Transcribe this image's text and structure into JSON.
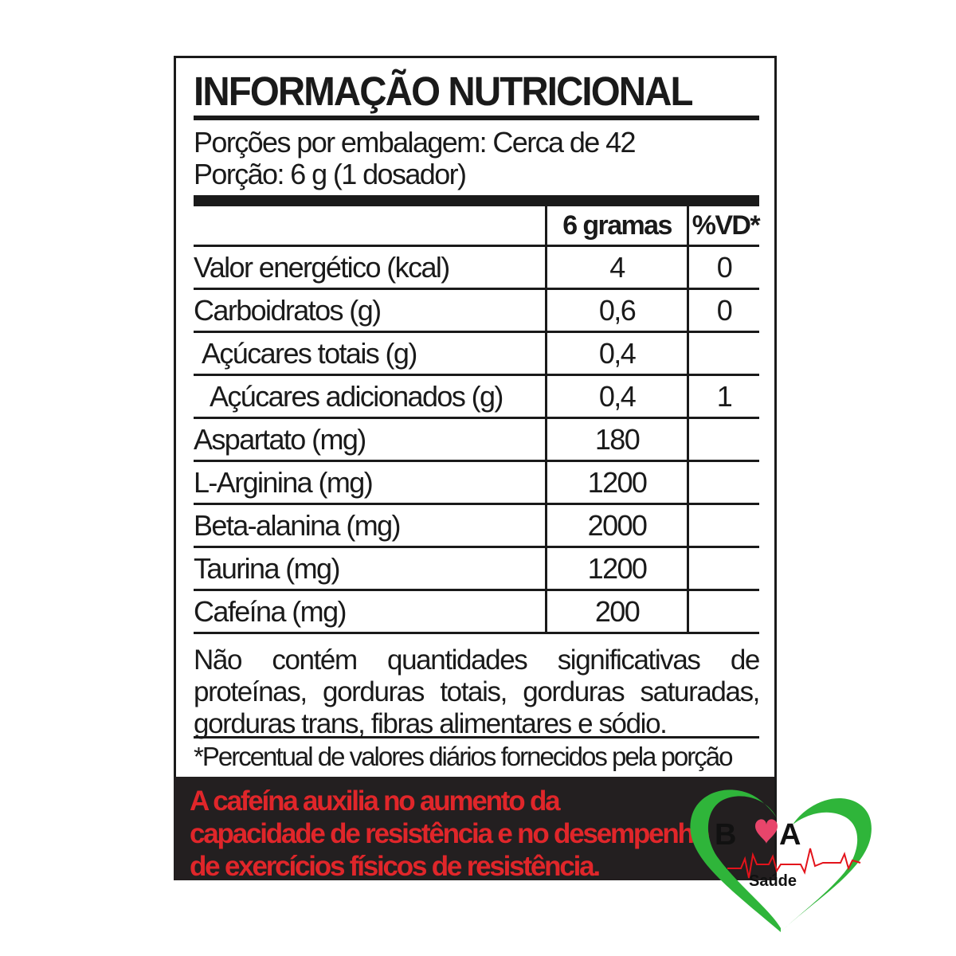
{
  "title": "INFORMAÇÃO NUTRICIONAL",
  "servings_per_package": "Porções por embalagem: Cerca de 42",
  "serving_size": "Porção: 6 g (1 dosador)",
  "table": {
    "headers": [
      "",
      "6 gramas",
      "%VD*"
    ],
    "rows": [
      {
        "name": "Valor energético (kcal)",
        "amount": "4",
        "dv": "0",
        "indent": 0
      },
      {
        "name": "Carboidratos (g)",
        "amount": "0,6",
        "dv": "0",
        "indent": 0
      },
      {
        "name": "Açúcares totais (g)",
        "amount": "0,4",
        "dv": "",
        "indent": 1
      },
      {
        "name": "Açúcares adicionados (g)",
        "amount": "0,4",
        "dv": "1",
        "indent": 2
      },
      {
        "name": "Aspartato (mg)",
        "amount": "180",
        "dv": "",
        "indent": 0
      },
      {
        "name": "L-Arginina (mg)",
        "amount": "1200",
        "dv": "",
        "indent": 0
      },
      {
        "name": "Beta-alanina (mg)",
        "amount": "2000",
        "dv": "",
        "indent": 0
      },
      {
        "name": "Taurina (mg)",
        "amount": "1200",
        "dv": "",
        "indent": 0
      },
      {
        "name": "Cafeína (mg)",
        "amount": "200",
        "dv": "",
        "indent": 0
      }
    ]
  },
  "note": "Não contém quantidades significativas de proteínas, gorduras totais, gorduras saturadas, gorduras trans, fibras alimentares e sódio.",
  "footnote": "*Percentual de valores diários fornecidos pela porção",
  "warning": "A cafeína auxilia no aumento da\ncapacidade de resistência e no desempenho\nde exercícios físicos de resistência.",
  "logo": {
    "text_b": "B",
    "text_a": "A",
    "subtitle": "Saúde"
  },
  "colors": {
    "warning_text": "#e0262a",
    "warning_bg": "#231f20",
    "logo_green": "#2fb53a",
    "logo_pulse": "#e3131b"
  }
}
